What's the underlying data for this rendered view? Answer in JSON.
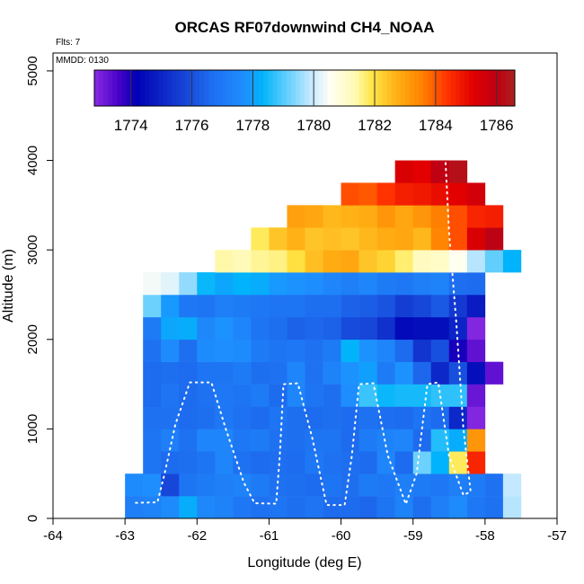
{
  "chart_data": {
    "type": "heatmap",
    "title": "ORCAS RF07downwind CH4_NOAA",
    "xlabel": "Longitude (deg E)",
    "ylabel": "Altitude (m)",
    "xlim": [
      -64,
      -57
    ],
    "ylim": [
      0,
      5200
    ],
    "xticks": [
      -64,
      -63,
      -62,
      -61,
      -60,
      -59,
      -58,
      -57
    ],
    "yticks": [
      0,
      1000,
      2000,
      3000,
      4000,
      5000
    ],
    "notes": {
      "flights": "Flts: 7",
      "mmdd": "MMDD: 0130"
    },
    "colorbar": {
      "min": 1772.8,
      "max": 1786.6,
      "ticks": [
        1774,
        1776,
        1778,
        1780,
        1782,
        1784,
        1786
      ]
    },
    "cell_width_deg": 0.25,
    "cell_height_m": 250,
    "row_bottoms_m": [
      0,
      250,
      500,
      750,
      1000,
      1250,
      1500,
      1750,
      2000,
      2250,
      2500,
      2750,
      3000,
      3250,
      3500,
      3750
    ],
    "rows": [
      {
        "x0": -63.0,
        "values": [
          1777.2,
          1777.3,
          1777.6,
          1778.2,
          1777.5,
          1777.3,
          1777.0,
          1776.8,
          1776.9,
          1776.7,
          1776.9,
          1776.6,
          1776.6,
          1776.5,
          1776.9,
          1777.3,
          1776.7,
          1777.2,
          1777.6,
          1777.0,
          1776.8,
          1779.8
        ]
      },
      {
        "x0": -63.0,
        "values": [
          1777.6,
          1777.7,
          1775.8,
          1776.9,
          1777.1,
          1777.2,
          1777.3,
          1777.1,
          1776.8,
          1776.7,
          1776.6,
          1776.9,
          1776.7,
          1777.1,
          1777.0,
          1777.2,
          1777.1,
          1777.0,
          1777.2,
          1777.1,
          1776.8,
          1779.9
        ]
      },
      {
        "x0": -62.75,
        "values": [
          1776.9,
          1776.6,
          1776.7,
          1776.9,
          1777.4,
          1776.8,
          1776.6,
          1776.7,
          1776.6,
          1777.0,
          1776.8,
          1776.7,
          1776.6,
          1777.4,
          1776.6,
          1779.2,
          1778.3,
          1781.8,
          1784.6
        ]
      },
      {
        "x0": -62.75,
        "values": [
          1776.9,
          1777.2,
          1776.8,
          1777.4,
          1777.4,
          1777.0,
          1777.1,
          1776.8,
          1776.7,
          1776.9,
          1776.9,
          1776.6,
          1777.1,
          1777.3,
          1777.4,
          1776.6,
          1778.6,
          1778.2,
          1783.2
        ]
      },
      {
        "x0": -62.75,
        "values": [
          1776.8,
          1776.8,
          1776.6,
          1776.7,
          1777.0,
          1776.8,
          1776.6,
          1776.9,
          1776.7,
          1776.6,
          1776.7,
          1776.6,
          1776.8,
          1776.7,
          1776.6,
          1776.9,
          1776.6,
          1775.1,
          1772.9
        ]
      },
      {
        "x0": -62.75,
        "values": [
          1776.6,
          1776.9,
          1776.6,
          1776.8,
          1777.0,
          1776.9,
          1777.1,
          1776.6,
          1777.4,
          1776.9,
          1776.7,
          1777.7,
          1778.8,
          1778.4,
          1778.5,
          1778.5,
          1778.7,
          1778.7,
          1773.2
        ]
      },
      {
        "x0": -62.75,
        "values": [
          1776.6,
          1776.7,
          1776.6,
          1776.9,
          1776.9,
          1777.1,
          1776.7,
          1776.8,
          1777.4,
          1776.8,
          1777.3,
          1777.8,
          1778.0,
          1777.1,
          1777.8,
          1776.5,
          1775.1,
          1776.0,
          1774.5,
          1773.3
        ]
      },
      {
        "x0": -62.75,
        "values": [
          1776.8,
          1777.6,
          1776.7,
          1777.6,
          1777.7,
          1777.6,
          1777.1,
          1776.9,
          1777.0,
          1776.8,
          1777.1,
          1778.3,
          1777.8,
          1777.4,
          1776.6,
          1775.4,
          1776.0,
          1774.0,
          1773.3
        ]
      },
      {
        "x0": -62.75,
        "values": [
          1777.1,
          1778.1,
          1778.2,
          1777.5,
          1777.8,
          1777.4,
          1776.9,
          1776.7,
          1776.4,
          1776.5,
          1776.4,
          1775.9,
          1775.8,
          1775.3,
          1774.4,
          1774.5,
          1774.5,
          1775.0,
          1772.9
        ]
      },
      {
        "x0": -62.75,
        "values": [
          1779.2,
          1777.9,
          1777.0,
          1776.9,
          1777.2,
          1777.1,
          1777.0,
          1776.9,
          1776.9,
          1776.7,
          1776.7,
          1776.4,
          1776.3,
          1776.1,
          1775.6,
          1775.8,
          1776.2,
          1775.5,
          1774.8
        ]
      },
      {
        "x0": -62.75,
        "values": [
          1780.4,
          1780.2,
          1779.5,
          1778.4,
          1778.1,
          1778.3,
          1778.2,
          1777.9,
          1777.8,
          1777.7,
          1777.4,
          1777.2,
          1777.4,
          1777.1,
          1777.0,
          1777.2,
          1777.3,
          1776.7,
          1776.6
        ]
      },
      {
        "x0": -61.75,
        "values": [
          1781.4,
          1781.3,
          1781.5,
          1781.6,
          1782.0,
          1782.5,
          1782.8,
          1782.9,
          1782.4,
          1782.2,
          1781.7,
          1781.2,
          1781.1,
          1780.6,
          1779.8,
          1779.1,
          1778.3
        ]
      },
      {
        "x0": -61.25,
        "values": [
          1781.8,
          1782.4,
          1782.7,
          1782.4,
          1782.5,
          1782.4,
          1782.6,
          1782.8,
          1782.9,
          1782.6,
          1783.5,
          1784.1,
          1785.4,
          1786.1
        ]
      },
      {
        "x0": -60.75,
        "values": [
          1783.0,
          1782.9,
          1782.6,
          1782.7,
          1782.8,
          1783.2,
          1782.9,
          1783.2,
          1783.6,
          1784.1,
          1784.6,
          1784.7
        ]
      },
      {
        "x0": -60.0,
        "values": [
          1784.1,
          1784.0,
          1784.4,
          1784.7,
          1784.8,
          1785.0,
          1785.2,
          1785.6
        ]
      },
      {
        "x0": -59.25,
        "values": [
          1785.4,
          1785.2,
          1785.8
        ]
      }
    ],
    "extra_cells": [
      {
        "x": -58.75,
        "y": 3750,
        "value": 1786.0
      },
      {
        "x": -58.5,
        "y": 3750,
        "value": 1786.3
      }
    ]
  }
}
